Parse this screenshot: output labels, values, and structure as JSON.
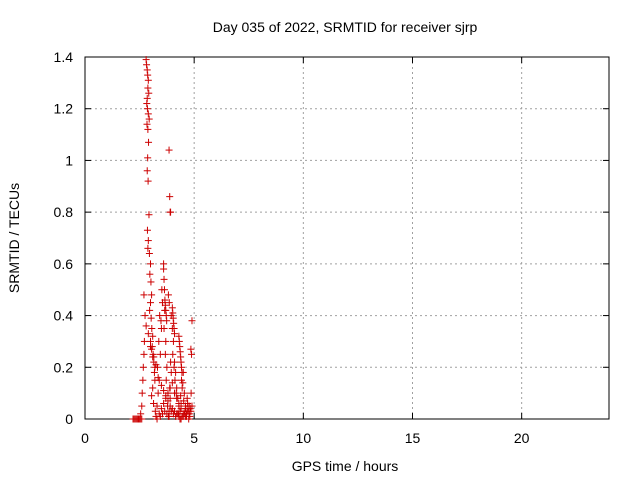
{
  "chart_data": {
    "type": "scatter",
    "title": "Day 035 of 2022, SRMTID for receiver sjrp",
    "xlabel": "GPS time / hours",
    "ylabel": "SRMTID / TECUs",
    "xlim": [
      0,
      24
    ],
    "ylim": [
      0,
      1.4
    ],
    "x_ticks": [
      0,
      5,
      10,
      15,
      20
    ],
    "x_tick_labels": [
      "0",
      "5",
      "10",
      "15",
      "20"
    ],
    "y_ticks": [
      0,
      0.2,
      0.4,
      0.6,
      0.8,
      1.0,
      1.2,
      1.4
    ],
    "y_tick_labels": [
      "0",
      "0.2",
      "0.4",
      "0.6",
      "0.8",
      "1",
      "1.2",
      "1.4"
    ],
    "grid": true,
    "marker": "plus",
    "series_color": "#cc0000",
    "series": [
      {
        "name": "SRMTID",
        "x": [
          2.2,
          2.25,
          2.3,
          2.35,
          2.4,
          2.45,
          2.5,
          2.55,
          2.6,
          2.55,
          2.6,
          2.62,
          2.65,
          2.67,
          2.7,
          2.72,
          2.8,
          2.82,
          2.85,
          2.87,
          2.9,
          2.88,
          2.92,
          2.85,
          2.83,
          2.86,
          2.9,
          2.94,
          2.84,
          2.88,
          2.91,
          2.87,
          2.85,
          2.89,
          2.93,
          2.86,
          2.9,
          2.88,
          2.95,
          3.0,
          2.97,
          3.02,
          3.05,
          3.0,
          2.96,
          3.03,
          3.06,
          3.1,
          3.08,
          3.12,
          3.15,
          3.18,
          3.2,
          3.1,
          3.05,
          3.14,
          3.22,
          3.25,
          3.3,
          3.35,
          3.4,
          3.32,
          3.45,
          3.38,
          3.5,
          3.42,
          3.55,
          3.48,
          3.6,
          3.52,
          3.65,
          3.62,
          3.7,
          3.68,
          3.75,
          3.72,
          3.8,
          3.78,
          3.85,
          3.82,
          3.9,
          3.88,
          3.95,
          3.92,
          3.85,
          3.88,
          3.9,
          3.92,
          3.82,
          3.86,
          3.95,
          4.0,
          4.05,
          4.02,
          4.1,
          4.08,
          4.15,
          4.12,
          4.2,
          4.18,
          4.25,
          4.3,
          4.35,
          4.28,
          4.4,
          4.38,
          4.45,
          4.42,
          4.5,
          4.48,
          4.55,
          4.52,
          4.6,
          4.58,
          4.65,
          4.62,
          4.7,
          4.68,
          4.72,
          4.75,
          4.78,
          4.8,
          4.82,
          4.85,
          3.4,
          3.5,
          3.6,
          3.7,
          3.8,
          3.9,
          4.0,
          4.1,
          4.2,
          4.3,
          4.4,
          4.5,
          4.6,
          4.7,
          4.8,
          3.3,
          3.45,
          3.55,
          3.65,
          3.75,
          3.85,
          3.95,
          4.05,
          4.15,
          4.25,
          4.35,
          4.45,
          4.55,
          4.65,
          4.75,
          3.0,
          3.1,
          3.2,
          3.35,
          3.5,
          3.6,
          3.7,
          3.8,
          3.9,
          4.0,
          4.1,
          4.2,
          4.3,
          4.4,
          4.5,
          2.7,
          2.75,
          2.8,
          2.9,
          3.0,
          3.05,
          3.15,
          3.25,
          3.6,
          3.62,
          3.64,
          3.66,
          3.68,
          3.7,
          3.72,
          3.74,
          4.0,
          4.02,
          4.04,
          4.06,
          4.08,
          4.1,
          4.3,
          4.32,
          4.34,
          4.36,
          4.38,
          4.4,
          4.42,
          4.44,
          4.9,
          4.85,
          4.88,
          4.86,
          4.9
        ],
        "y": [
          0,
          0,
          0,
          0,
          0,
          0,
          0,
          0,
          0,
          0.02,
          0.05,
          0.1,
          0.15,
          0.2,
          0.25,
          0.3,
          1.39,
          1.37,
          1.35,
          1.33,
          1.31,
          1.28,
          1.26,
          1.24,
          1.22,
          1.2,
          1.18,
          1.16,
          1.14,
          1.12,
          1.07,
          1.01,
          0.96,
          0.92,
          0.79,
          0.73,
          0.69,
          0.66,
          0.64,
          0.6,
          0.56,
          0.53,
          0.48,
          0.45,
          0.42,
          0.39,
          0.35,
          0.32,
          0.28,
          0.25,
          0.22,
          0.18,
          0.15,
          0.12,
          0.09,
          0.06,
          0.03,
          0.01,
          0.05,
          0.1,
          0.15,
          0.2,
          0.25,
          0.3,
          0.35,
          0.4,
          0.45,
          0.38,
          0.6,
          0.5,
          0.42,
          0.35,
          0.3,
          0.25,
          0.2,
          0.15,
          0.1,
          0.05,
          0.03,
          0.01,
          0.08,
          0.12,
          0.18,
          0.22,
          1.04,
          0.86,
          0.8,
          0.8,
          0.48,
          0.45,
          0.4,
          0.35,
          0.3,
          0.25,
          0.22,
          0.2,
          0.18,
          0.15,
          0.12,
          0.1,
          0.08,
          0.05,
          0.03,
          0.02,
          0.06,
          0.09,
          0.12,
          0.15,
          0.18,
          0.14,
          0.1,
          0.07,
          0.05,
          0.03,
          0.02,
          0.04,
          0.06,
          0.08,
          0.05,
          0.03,
          0.02,
          0.01,
          0.04,
          0.03,
          0.02,
          0.04,
          0.06,
          0.08,
          0.1,
          0.12,
          0.14,
          0.1,
          0.08,
          0.06,
          0.04,
          0.02,
          0.01,
          0.03,
          0.05,
          0.0,
          0.01,
          0.02,
          0.03,
          0.02,
          0.01,
          0.03,
          0.02,
          0.01,
          0.02,
          0.0,
          0.01,
          0.02,
          0.01,
          0.0,
          0.28,
          0.24,
          0.2,
          0.16,
          0.13,
          0.11,
          0.09,
          0.07,
          0.05,
          0.04,
          0.03,
          0.02,
          0.01,
          0.0,
          0.01,
          0.48,
          0.4,
          0.36,
          0.33,
          0.3,
          0.27,
          0.24,
          0.21,
          0.58,
          0.54,
          0.5,
          0.46,
          0.44,
          0.42,
          0.4,
          0.38,
          0.43,
          0.41,
          0.39,
          0.37,
          0.35,
          0.33,
          0.32,
          0.3,
          0.28,
          0.26,
          0.24,
          0.22,
          0.2,
          0.18,
          0.38,
          0.27,
          0.25,
          0.1,
          0.05
        ]
      }
    ]
  }
}
